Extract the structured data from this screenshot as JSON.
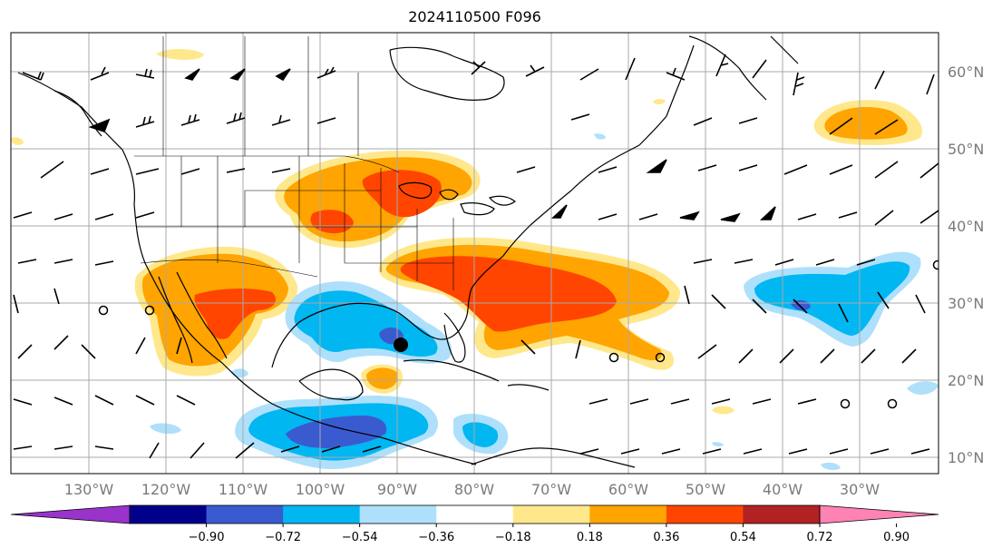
{
  "title": "2024110500 F096",
  "lon_labels": [
    "130°W",
    "120°W",
    "110°W",
    "100°W",
    "90°W",
    "80°W",
    "70°W",
    "60°W",
    "50°W",
    "40°W",
    "30°W"
  ],
  "lat_labels": [
    "60°N",
    "50°N",
    "40°N",
    "30°N",
    "20°N",
    "10°N"
  ],
  "colorbar": {
    "ticks": [
      "−0.90",
      "−0.72",
      "−0.54",
      "−0.36",
      "−0.18",
      "0.18",
      "0.36",
      "0.54",
      "0.72",
      "0.90"
    ],
    "colors": {
      "under": "#9933cc",
      "bins": [
        "#9933cc",
        "#00008b",
        "#3a5bd0",
        "#00b7f2",
        "#aee0fb",
        "#ffffff",
        "#ffe88c",
        "#ffa400",
        "#ff4500",
        "#b22222",
        "#ff82b4"
      ],
      "over": "#ff82b4"
    }
  },
  "colors": {
    "positive_light": "#ffe88c",
    "positive_mid": "#ffa400",
    "positive_strong": "#ff4500",
    "negative_light": "#aee0fb",
    "negative_mid": "#00b7f2",
    "negative_strong": "#3a5bd0",
    "negative_deep": "#5a3fc0"
  },
  "marker": {
    "name": "storm-center",
    "type": "filled-circle"
  }
}
